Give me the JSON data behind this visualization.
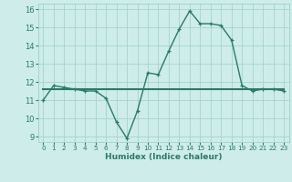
{
  "x": [
    0,
    1,
    2,
    3,
    4,
    5,
    6,
    7,
    8,
    9,
    10,
    11,
    12,
    13,
    14,
    15,
    16,
    17,
    18,
    19,
    20,
    21,
    22,
    23
  ],
  "y_humidex": [
    11.0,
    11.8,
    11.7,
    11.6,
    11.5,
    11.5,
    11.1,
    9.8,
    8.9,
    10.4,
    12.5,
    12.4,
    13.7,
    14.9,
    15.9,
    15.2,
    15.2,
    15.1,
    14.3,
    11.8,
    11.5,
    11.6,
    11.6,
    11.5
  ],
  "y_flat": [
    11.6,
    11.6,
    11.6,
    11.6,
    11.6,
    11.6,
    11.6,
    11.6,
    11.6,
    11.6,
    11.6,
    11.6,
    11.6,
    11.6,
    11.6,
    11.6,
    11.6,
    11.6,
    11.6,
    11.6,
    11.6,
    11.6,
    11.6,
    11.6
  ],
  "line_color": "#2a7a6a",
  "bg_color": "#cdecea",
  "grid_color": "#9ecfcc",
  "xlabel": "Humidex (Indice chaleur)",
  "xlabel_fontsize": 6.5,
  "xlim": [
    -0.5,
    23.5
  ],
  "ylim": [
    8.7,
    16.3
  ],
  "yticks": [
    9,
    10,
    11,
    12,
    13,
    14,
    15,
    16
  ],
  "xticks": [
    0,
    1,
    2,
    3,
    4,
    5,
    6,
    7,
    8,
    9,
    10,
    11,
    12,
    13,
    14,
    15,
    16,
    17,
    18,
    19,
    20,
    21,
    22,
    23
  ],
  "xtick_labels": [
    "0",
    "1",
    "2",
    "3",
    "4",
    "5",
    "6",
    "7",
    "8",
    "9",
    "10",
    "11",
    "12",
    "13",
    "14",
    "15",
    "16",
    "17",
    "18",
    "19",
    "20",
    "21",
    "22",
    "23"
  ],
  "marker_size": 3.0,
  "linewidth": 1.0,
  "flat_linewidth": 1.5
}
